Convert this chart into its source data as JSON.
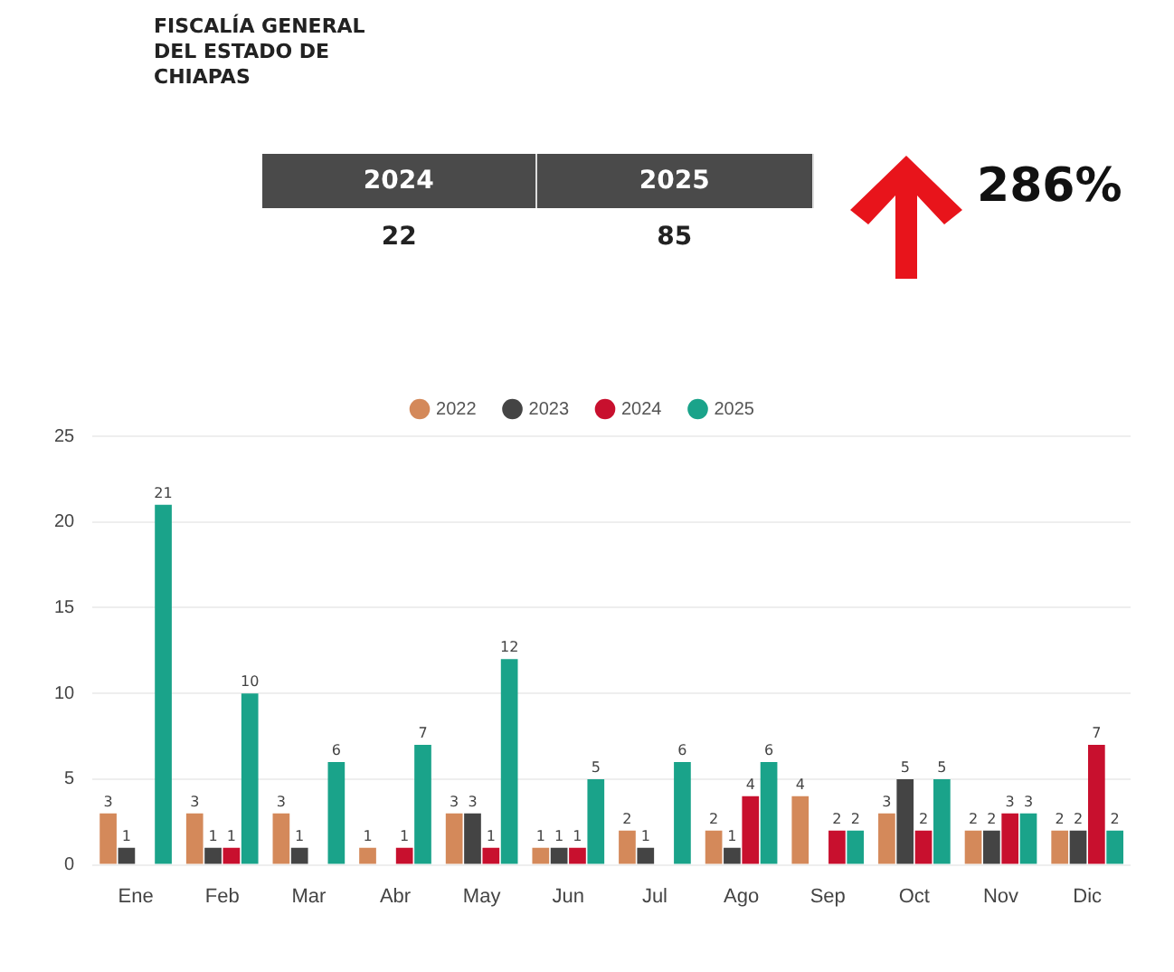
{
  "chart_data": {
    "type": "bar",
    "annotations": [
      "FISCALÍA GENERAL DEL ESTADO DE CHIAPAS",
      "2024",
      "2025",
      "22",
      "85",
      "286%"
    ],
    "categories": [
      "Ene",
      "Feb",
      "Mar",
      "Abr",
      "May",
      "Jun",
      "Jul",
      "Ago",
      "Sep",
      "Oct",
      "Nov",
      "Dic"
    ],
    "series": [
      {
        "name": "2022",
        "color": "#d4895a",
        "values": [
          3,
          3,
          3,
          1,
          3,
          1,
          2,
          2,
          4,
          3,
          2,
          2
        ]
      },
      {
        "name": "2023",
        "color": "#444444",
        "values": [
          1,
          1,
          1,
          null,
          3,
          1,
          1,
          1,
          null,
          5,
          2,
          2
        ]
      },
      {
        "name": "2024",
        "color": "#c8102e",
        "values": [
          null,
          1,
          null,
          1,
          1,
          1,
          null,
          4,
          2,
          2,
          3,
          7
        ]
      },
      {
        "name": "2025",
        "color": "#1aa38a",
        "values": [
          21,
          10,
          6,
          7,
          12,
          5,
          6,
          6,
          2,
          5,
          3,
          2
        ]
      }
    ],
    "ylim": [
      0,
      25
    ],
    "yticks": [
      0,
      5,
      10,
      15,
      20,
      25
    ],
    "grid": "y",
    "legend": "top",
    "data_labels": true
  }
}
